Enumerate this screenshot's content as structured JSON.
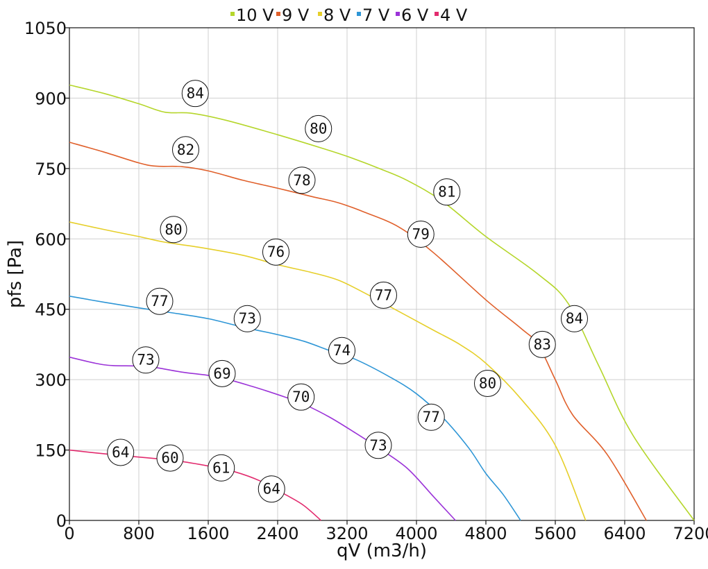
{
  "chart_data": {
    "type": "line",
    "xlabel": "qV (m3/h)",
    "ylabel": "pfs [Pa]",
    "xlim": [
      0,
      7200
    ],
    "ylim": [
      0,
      1050
    ],
    "xticks": [
      0,
      800,
      1600,
      2400,
      3200,
      4000,
      4800,
      5600,
      6400,
      7200
    ],
    "yticks": [
      0,
      150,
      300,
      450,
      600,
      750,
      900,
      1050
    ],
    "grid": true,
    "legend_position": "top",
    "series": [
      {
        "name": "10 V",
        "color": "#b5d62b",
        "points": [
          [
            0,
            928
          ],
          [
            400,
            910
          ],
          [
            800,
            888
          ],
          [
            1100,
            870
          ],
          [
            1400,
            868
          ],
          [
            1800,
            853
          ],
          [
            2400,
            822
          ],
          [
            2900,
            794
          ],
          [
            3200,
            776
          ],
          [
            3600,
            748
          ],
          [
            3900,
            724
          ],
          [
            4300,
            680
          ],
          [
            4800,
            605
          ],
          [
            5400,
            525
          ],
          [
            5750,
            462
          ],
          [
            6100,
            330
          ],
          [
            6500,
            180
          ],
          [
            7200,
            0
          ]
        ],
        "labels": [
          {
            "x": 1450,
            "y": 910,
            "text": "84"
          },
          {
            "x": 2870,
            "y": 835,
            "text": "80"
          },
          {
            "x": 4350,
            "y": 700,
            "text": "81"
          },
          {
            "x": 5820,
            "y": 430,
            "text": "84"
          }
        ]
      },
      {
        "name": "9 V",
        "color": "#e0602b",
        "points": [
          [
            0,
            806
          ],
          [
            400,
            785
          ],
          [
            800,
            762
          ],
          [
            1000,
            755
          ],
          [
            1300,
            754
          ],
          [
            1600,
            745
          ],
          [
            2000,
            725
          ],
          [
            2400,
            708
          ],
          [
            2800,
            690
          ],
          [
            3100,
            677
          ],
          [
            3400,
            657
          ],
          [
            3800,
            625
          ],
          [
            4200,
            570
          ],
          [
            4800,
            470
          ],
          [
            5200,
            410
          ],
          [
            5400,
            375
          ],
          [
            5600,
            300
          ],
          [
            5800,
            225
          ],
          [
            6200,
            140
          ],
          [
            6650,
            0
          ]
        ],
        "labels": [
          {
            "x": 1340,
            "y": 790,
            "text": "82"
          },
          {
            "x": 2680,
            "y": 725,
            "text": "78"
          },
          {
            "x": 4050,
            "y": 610,
            "text": "79"
          },
          {
            "x": 5450,
            "y": 375,
            "text": "83"
          }
        ]
      },
      {
        "name": "8 V",
        "color": "#e6cf2a",
        "points": [
          [
            0,
            636
          ],
          [
            400,
            620
          ],
          [
            800,
            605
          ],
          [
            1100,
            593
          ],
          [
            1500,
            582
          ],
          [
            2000,
            565
          ],
          [
            2400,
            545
          ],
          [
            2800,
            528
          ],
          [
            3100,
            512
          ],
          [
            3400,
            485
          ],
          [
            3800,
            445
          ],
          [
            4200,
            405
          ],
          [
            4500,
            375
          ],
          [
            4800,
            335
          ],
          [
            5200,
            260
          ],
          [
            5600,
            160
          ],
          [
            5950,
            0
          ]
        ],
        "labels": [
          {
            "x": 1200,
            "y": 620,
            "text": "80"
          },
          {
            "x": 2380,
            "y": 572,
            "text": "76"
          },
          {
            "x": 3620,
            "y": 480,
            "text": "77"
          },
          {
            "x": 4820,
            "y": 292,
            "text": "80"
          }
        ]
      },
      {
        "name": "7 V",
        "color": "#2e96d6",
        "points": [
          [
            0,
            478
          ],
          [
            400,
            465
          ],
          [
            800,
            453
          ],
          [
            1200,
            442
          ],
          [
            1600,
            430
          ],
          [
            2000,
            412
          ],
          [
            2400,
            396
          ],
          [
            2700,
            382
          ],
          [
            3000,
            362
          ],
          [
            3300,
            343
          ],
          [
            3700,
            305
          ],
          [
            4000,
            270
          ],
          [
            4300,
            220
          ],
          [
            4600,
            155
          ],
          [
            4800,
            100
          ],
          [
            5000,
            55
          ],
          [
            5200,
            0
          ]
        ],
        "labels": [
          {
            "x": 1040,
            "y": 467,
            "text": "77"
          },
          {
            "x": 2050,
            "y": 430,
            "text": "73"
          },
          {
            "x": 3140,
            "y": 362,
            "text": "74"
          },
          {
            "x": 4170,
            "y": 220,
            "text": "77"
          }
        ]
      },
      {
        "name": "6 V",
        "color": "#9b33d8",
        "points": [
          [
            0,
            348
          ],
          [
            300,
            335
          ],
          [
            500,
            330
          ],
          [
            900,
            328
          ],
          [
            1300,
            316
          ],
          [
            1700,
            306
          ],
          [
            2100,
            286
          ],
          [
            2500,
            262
          ],
          [
            2700,
            248
          ],
          [
            3000,
            220
          ],
          [
            3300,
            186
          ],
          [
            3600,
            150
          ],
          [
            3900,
            110
          ],
          [
            4200,
            50
          ],
          [
            4450,
            0
          ]
        ],
        "labels": [
          {
            "x": 880,
            "y": 342,
            "text": "73"
          },
          {
            "x": 1760,
            "y": 313,
            "text": "69"
          },
          {
            "x": 2670,
            "y": 263,
            "text": "70"
          },
          {
            "x": 3560,
            "y": 160,
            "text": "73"
          }
        ]
      },
      {
        "name": "4 V",
        "color": "#e22b6e",
        "points": [
          [
            0,
            150
          ],
          [
            400,
            142
          ],
          [
            800,
            135
          ],
          [
            1200,
            128
          ],
          [
            1600,
            116
          ],
          [
            1900,
            104
          ],
          [
            2200,
            84
          ],
          [
            2500,
            54
          ],
          [
            2700,
            32
          ],
          [
            2900,
            0
          ]
        ],
        "labels": [
          {
            "x": 590,
            "y": 145,
            "text": "64"
          },
          {
            "x": 1160,
            "y": 133,
            "text": "60"
          },
          {
            "x": 1750,
            "y": 112,
            "text": "61"
          },
          {
            "x": 2330,
            "y": 67,
            "text": "64"
          }
        ]
      }
    ]
  }
}
